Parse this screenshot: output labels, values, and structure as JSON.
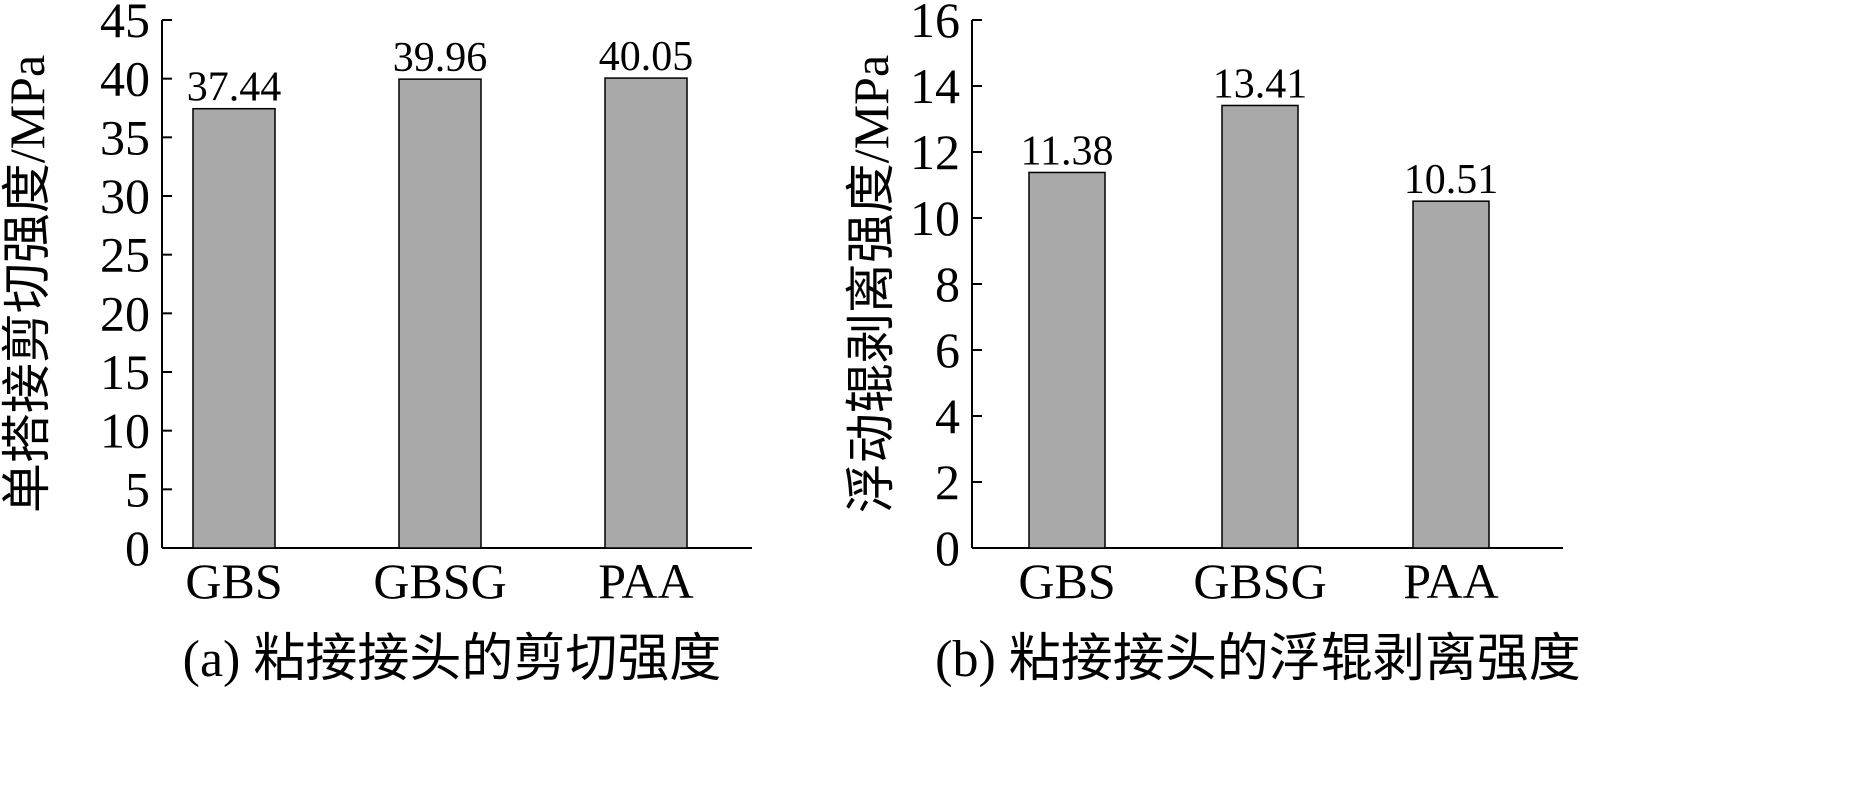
{
  "chart_data": [
    {
      "type": "bar",
      "categories": [
        "GBS",
        "GBSG",
        "PAA"
      ],
      "values": [
        37.44,
        39.96,
        40.05
      ],
      "value_labels": [
        "37.44",
        "39.96",
        "40.05"
      ],
      "ylabel": "单搭接剪切强度/MPa",
      "ylim": [
        0,
        45
      ],
      "yticks": [
        "0",
        "5",
        "10",
        "15",
        "20",
        "25",
        "30",
        "35",
        "40",
        "45"
      ],
      "caption": "(a) 粘接接头的剪切强度",
      "bar_color": "#a9a9a9",
      "grid": false
    },
    {
      "type": "bar",
      "categories": [
        "GBS",
        "GBSG",
        "PAA"
      ],
      "values": [
        11.38,
        13.41,
        10.51
      ],
      "value_labels": [
        "11.38",
        "13.41",
        "10.51"
      ],
      "ylabel": "浮动辊剥离强度/MPa",
      "ylim": [
        0,
        16
      ],
      "yticks": [
        "0",
        "2",
        "4",
        "6",
        "8",
        "10",
        "12",
        "14",
        "16"
      ],
      "caption": "(b) 粘接接头的浮辊剥离强度",
      "bar_color": "#a9a9a9",
      "grid": false
    }
  ]
}
